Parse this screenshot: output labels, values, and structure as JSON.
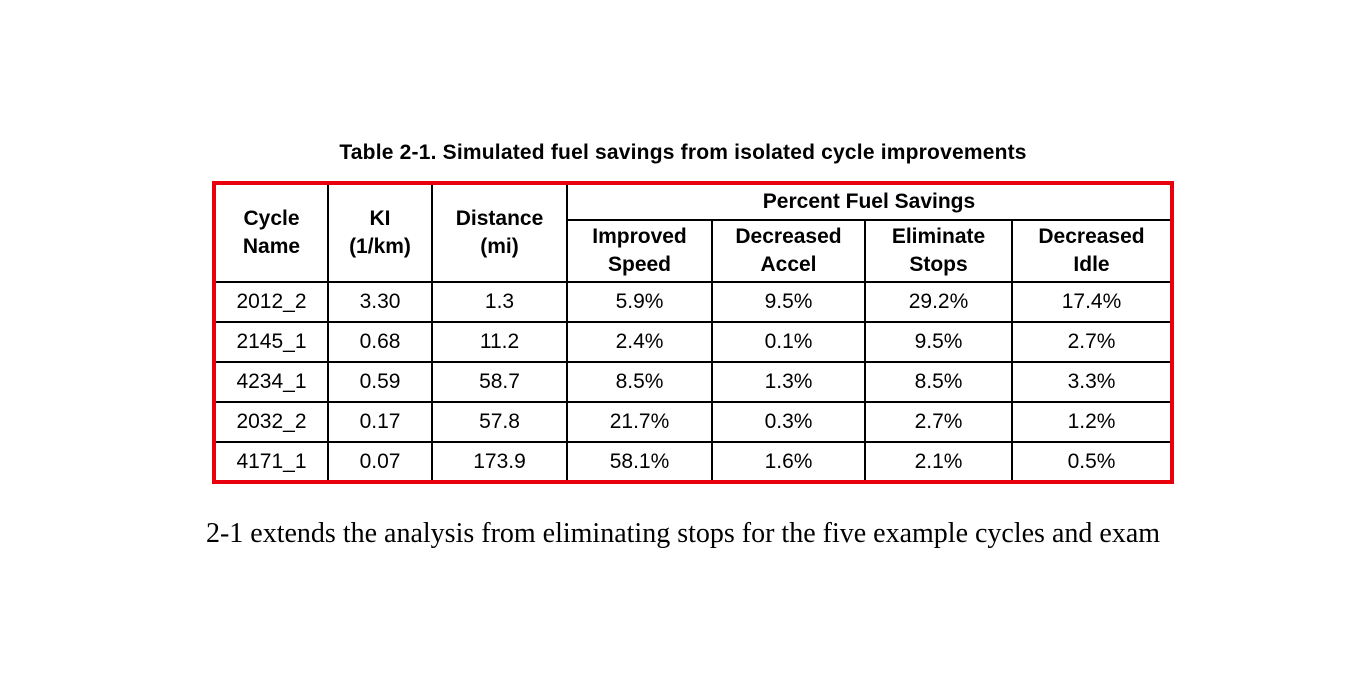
{
  "page": {
    "title": "Table 2-1. Simulated fuel savings from isolated cycle improvements",
    "body_text": "2-1 extends the analysis from eliminating stops for the five example cycles and exam"
  },
  "table": {
    "border_color": "#e8000d",
    "group_header": "Percent Fuel Savings",
    "columns": [
      "Cycle\nName",
      "KI\n(1/km)",
      "Distance\n(mi)",
      "Improved\nSpeed",
      "Decreased\nAccel",
      "Eliminate\nStops",
      "Decreased\nIdle"
    ],
    "rows": [
      [
        "2012_2",
        "3.30",
        "1.3",
        "5.9%",
        "9.5%",
        "29.2%",
        "17.4%"
      ],
      [
        "2145_1",
        "0.68",
        "11.2",
        "2.4%",
        "0.1%",
        "9.5%",
        "2.7%"
      ],
      [
        "4234_1",
        "0.59",
        "58.7",
        "8.5%",
        "1.3%",
        "8.5%",
        "3.3%"
      ],
      [
        "2032_2",
        "0.17",
        "57.8",
        "21.7%",
        "0.3%",
        "2.7%",
        "1.2%"
      ],
      [
        "4171_1",
        "0.07",
        "173.9",
        "58.1%",
        "1.6%",
        "2.1%",
        "0.5%"
      ]
    ]
  },
  "chart_data": {
    "type": "table",
    "title": "Table 2-1. Simulated fuel savings from isolated cycle improvements",
    "categories": [
      "Cycle Name",
      "KI (1/km)",
      "Distance (mi)",
      "Improved Speed",
      "Decreased Accel",
      "Eliminate Stops",
      "Decreased Idle"
    ],
    "series": [
      {
        "name": "2012_2",
        "values": [
          3.3,
          1.3,
          5.9,
          9.5,
          29.2,
          17.4
        ]
      },
      {
        "name": "2145_1",
        "values": [
          0.68,
          11.2,
          2.4,
          0.1,
          9.5,
          2.7
        ]
      },
      {
        "name": "4234_1",
        "values": [
          0.59,
          58.7,
          8.5,
          1.3,
          8.5,
          3.3
        ]
      },
      {
        "name": "2032_2",
        "values": [
          0.17,
          57.8,
          21.7,
          0.3,
          2.7,
          1.2
        ]
      },
      {
        "name": "4171_1",
        "values": [
          0.07,
          173.9,
          58.1,
          1.6,
          2.1,
          0.5
        ]
      }
    ]
  }
}
